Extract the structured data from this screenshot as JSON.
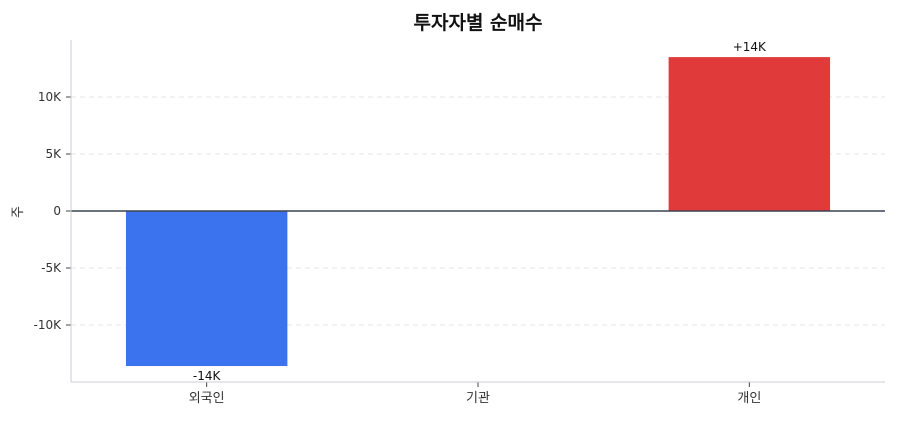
{
  "chart_data": {
    "type": "bar",
    "title": "투자자별 순매수",
    "xlabel": "",
    "ylabel": "주",
    "categories": [
      "외국인",
      "기관",
      "개인"
    ],
    "values": [
      -13600,
      0,
      13500
    ],
    "data_labels": [
      "-14K",
      "",
      "+14K"
    ],
    "colors": [
      "#3b73ee",
      "#888888",
      "#e03a3a"
    ],
    "ylim": [
      -15000,
      15000
    ],
    "yticks": [
      -10000,
      -5000,
      0,
      5000,
      10000
    ],
    "ytick_labels": [
      "-10K",
      "-5K",
      "0",
      "5K",
      "10K"
    ],
    "grid": true
  }
}
